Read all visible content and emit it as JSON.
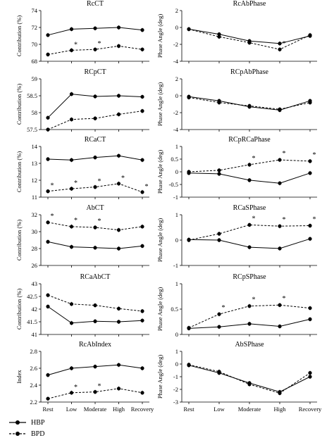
{
  "conditions": [
    "Rest",
    "Low",
    "Moderate",
    "High",
    "Recovery"
  ],
  "legend": [
    {
      "label": "HBP",
      "style": "solid"
    },
    {
      "label": "BPD",
      "style": "dashed"
    }
  ],
  "colors": {
    "lines": "#000000",
    "background": "#ffffff"
  },
  "chart_data": [
    {
      "type": "line",
      "title": "RcCT",
      "ylabel": "Contribution (%)",
      "ylim": [
        68,
        74
      ],
      "yticks": [
        "68",
        "70",
        "72",
        "74"
      ],
      "xtick_labels": false,
      "series": [
        {
          "name": "HBP",
          "values": [
            71.1,
            71.8,
            71.9,
            72.0,
            71.7
          ]
        },
        {
          "name": "BPD",
          "values": [
            68.8,
            69.3,
            69.4,
            69.8,
            69.4
          ]
        }
      ],
      "significance_markers": [
        "Low",
        "Moderate"
      ]
    },
    {
      "type": "line",
      "title": "RcAbPhase",
      "ylabel": "Phase Angle (deg)",
      "ylim": [
        -4,
        2
      ],
      "yticks": [
        "-4",
        "-2",
        "0",
        "2"
      ],
      "xtick_labels": false,
      "series": [
        {
          "name": "HBP",
          "values": [
            -0.2,
            -0.8,
            -1.6,
            -1.9,
            -1.0
          ]
        },
        {
          "name": "BPD",
          "values": [
            -0.2,
            -1.1,
            -1.8,
            -2.6,
            -0.9
          ]
        }
      ],
      "significance_markers": [
        "High"
      ]
    },
    {
      "type": "line",
      "title": "RCpCT",
      "ylabel": "Contribution (%)",
      "ylim": [
        57.5,
        59
      ],
      "yticks": [
        "57.5",
        "58",
        "58.5",
        "59"
      ],
      "xtick_labels": false,
      "series": [
        {
          "name": "HBP",
          "values": [
            57.85,
            58.55,
            58.48,
            58.5,
            58.47
          ]
        },
        {
          "name": "BPD",
          "values": [
            57.5,
            57.8,
            57.83,
            57.95,
            58.05
          ]
        }
      ],
      "significance_markers": []
    },
    {
      "type": "line",
      "title": "RCpAbPhase",
      "ylabel": "Phase Angle (deg)",
      "ylim": [
        -4,
        2
      ],
      "yticks": [
        "-4",
        "-2",
        "0",
        "2"
      ],
      "xtick_labels": false,
      "series": [
        {
          "name": "HBP",
          "values": [
            -0.1,
            -0.6,
            -1.3,
            -1.7,
            -0.6
          ]
        },
        {
          "name": "BPD",
          "values": [
            -0.2,
            -0.8,
            -1.2,
            -1.6,
            -0.8
          ]
        }
      ],
      "significance_markers": []
    },
    {
      "type": "line",
      "title": "RCaCT",
      "ylabel": "Contribution (%)",
      "ylim": [
        11,
        14
      ],
      "yticks": [
        "11",
        "12",
        "13",
        "14"
      ],
      "xtick_labels": false,
      "series": [
        {
          "name": "HBP",
          "values": [
            13.25,
            13.2,
            13.35,
            13.45,
            13.2
          ]
        },
        {
          "name": "BPD",
          "values": [
            11.35,
            11.5,
            11.6,
            11.8,
            11.3
          ]
        }
      ],
      "significance_markers": [
        "Rest",
        "Low",
        "Moderate",
        "High",
        "Recovery"
      ]
    },
    {
      "type": "line",
      "title": "RCpRCaPhase",
      "ylabel": "Phase Angle (deg)",
      "ylim": [
        -1,
        1
      ],
      "yticks": [
        "-1",
        "-0.5",
        "0",
        "0.5",
        "1"
      ],
      "xtick_labels": false,
      "series": [
        {
          "name": "HBP",
          "values": [
            -0.05,
            -0.08,
            -0.33,
            -0.45,
            -0.05
          ]
        },
        {
          "name": "BPD",
          "values": [
            0.0,
            0.06,
            0.28,
            0.47,
            0.42
          ]
        }
      ],
      "significance_markers": [
        "Moderate",
        "High",
        "Recovery"
      ]
    },
    {
      "type": "line",
      "title": "AbCT",
      "ylabel": "Contribution (%)",
      "ylim": [
        26,
        32
      ],
      "yticks": [
        "26",
        "28",
        "30",
        "32"
      ],
      "xtick_labels": false,
      "series": [
        {
          "name": "HBP",
          "values": [
            28.8,
            28.2,
            28.1,
            28.0,
            28.3
          ]
        },
        {
          "name": "BPD",
          "values": [
            31.1,
            30.6,
            30.5,
            30.2,
            30.6
          ]
        }
      ],
      "significance_markers": [
        "Rest",
        "Low",
        "Moderate"
      ]
    },
    {
      "type": "line",
      "title": "RCaSPhase",
      "ylabel": "Phase Angle (deg)",
      "ylim": [
        -1,
        1
      ],
      "yticks": [
        "-1",
        "0",
        "1"
      ],
      "xtick_labels": false,
      "series": [
        {
          "name": "HBP",
          "values": [
            0.02,
            0.0,
            -0.28,
            -0.33,
            0.05
          ]
        },
        {
          "name": "BPD",
          "values": [
            0.0,
            0.25,
            0.6,
            0.55,
            0.57
          ]
        }
      ],
      "significance_markers": [
        "Moderate",
        "High",
        "Recovery"
      ]
    },
    {
      "type": "line",
      "title": "RCaAbCT",
      "ylabel": "Contribution (%)",
      "ylim": [
        41,
        43
      ],
      "yticks": [
        "41",
        "41.5",
        "42",
        "42.5",
        "43"
      ],
      "xtick_labels": false,
      "series": [
        {
          "name": "HBP",
          "values": [
            42.1,
            41.45,
            41.52,
            41.5,
            41.55
          ]
        },
        {
          "name": "BPD",
          "values": [
            42.55,
            42.2,
            42.15,
            42.02,
            41.92
          ]
        }
      ],
      "significance_markers": []
    },
    {
      "type": "line",
      "title": "RCpSPhase",
      "ylabel": "Phase Angle (deg)",
      "ylim": [
        0,
        1
      ],
      "yticks": [
        "0",
        "0.5",
        "1"
      ],
      "xtick_labels": false,
      "series": [
        {
          "name": "HBP",
          "values": [
            0.12,
            0.15,
            0.21,
            0.16,
            0.3
          ]
        },
        {
          "name": "BPD",
          "values": [
            0.13,
            0.4,
            0.56,
            0.58,
            0.52
          ]
        }
      ],
      "significance_markers": [
        "Low",
        "Moderate",
        "High"
      ]
    },
    {
      "type": "line",
      "title": "RcAbIndex",
      "ylabel": "Index",
      "ylim": [
        2.2,
        2.8
      ],
      "yticks": [
        "2.2",
        "2.4",
        "2.6",
        "2.8"
      ],
      "xtick_labels": true,
      "series": [
        {
          "name": "HBP",
          "values": [
            2.52,
            2.6,
            2.62,
            2.64,
            2.6
          ]
        },
        {
          "name": "BPD",
          "values": [
            2.24,
            2.31,
            2.32,
            2.36,
            2.31
          ]
        }
      ],
      "significance_markers": [
        "Low",
        "Moderate"
      ]
    },
    {
      "type": "line",
      "title": "AbSPhase",
      "ylabel": "Phase Angle (deg)",
      "ylim": [
        -3,
        1
      ],
      "yticks": [
        "-3",
        "-2",
        "-1",
        "0",
        "1"
      ],
      "xtick_labels": true,
      "series": [
        {
          "name": "HBP",
          "values": [
            -0.1,
            -0.7,
            -1.5,
            -2.2,
            -1.0
          ]
        },
        {
          "name": "BPD",
          "values": [
            -0.05,
            -0.6,
            -1.6,
            -2.3,
            -0.7
          ]
        }
      ],
      "significance_markers": []
    }
  ]
}
